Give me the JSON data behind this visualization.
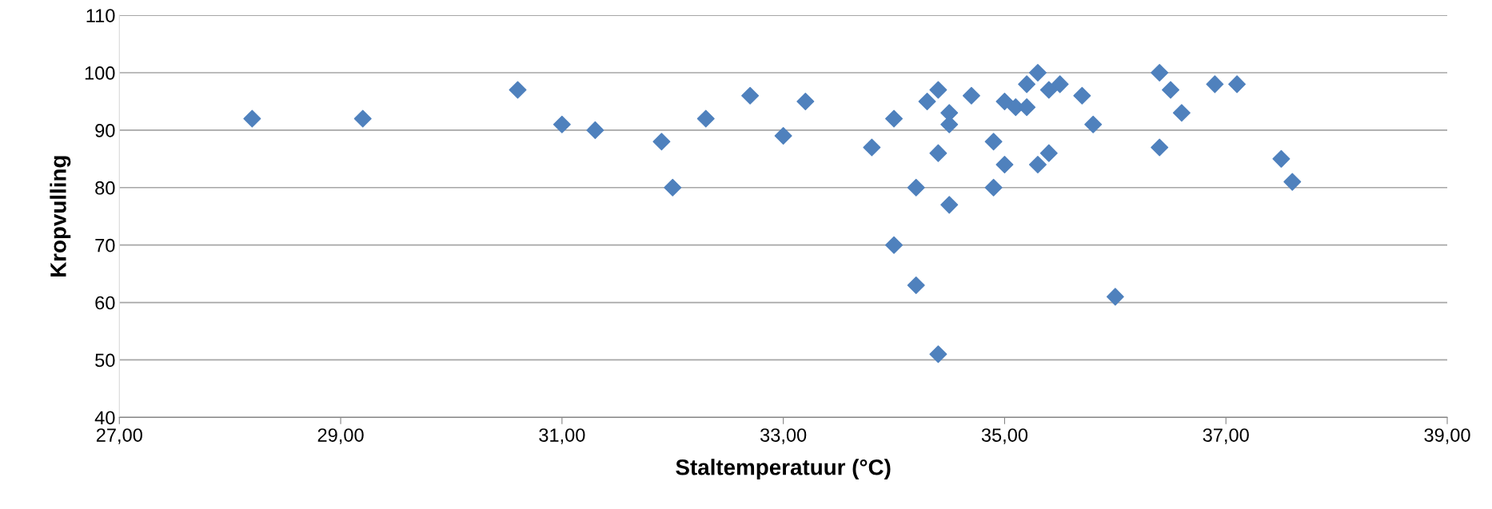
{
  "chart_data": {
    "type": "scatter",
    "xlabel": "Staltemperatuur (°C)",
    "ylabel": "Kropvulling",
    "x": [
      28.2,
      29.2,
      30.6,
      31.0,
      31.3,
      31.9,
      32.0,
      32.3,
      32.7,
      33.0,
      33.2,
      33.8,
      34.0,
      34.0,
      34.2,
      34.2,
      34.3,
      34.4,
      34.4,
      34.4,
      34.5,
      34.5,
      34.5,
      34.7,
      34.9,
      34.9,
      35.0,
      35.0,
      35.1,
      35.2,
      35.2,
      35.3,
      35.3,
      35.4,
      35.4,
      35.5,
      35.7,
      35.8,
      36.0,
      36.4,
      36.4,
      36.5,
      36.6,
      36.9,
      37.1,
      37.5,
      37.6
    ],
    "series": [
      {
        "color": "#4f81bd",
        "values": [
          92,
          92,
          97,
          91,
          90,
          88,
          80,
          92,
          96,
          89,
          95,
          87,
          92,
          70,
          80,
          63,
          95,
          97,
          86,
          51,
          93,
          91,
          77,
          96,
          88,
          80,
          95,
          84,
          94,
          98,
          94,
          100,
          84,
          97,
          86,
          98,
          96,
          91,
          61,
          100,
          87,
          97,
          93,
          98,
          98,
          85,
          81
        ]
      }
    ],
    "xlim": [
      27,
      39
    ],
    "xticks": [
      {
        "value": 27,
        "label": "27,00"
      },
      {
        "value": 29,
        "label": "29,00"
      },
      {
        "value": 31,
        "label": "31,00"
      },
      {
        "value": 33,
        "label": "33,00"
      },
      {
        "value": 35,
        "label": "35,00"
      },
      {
        "value": 37,
        "label": "37,00"
      },
      {
        "value": 39,
        "label": "39,00"
      }
    ],
    "ylim": [
      40,
      110
    ],
    "yticks": [
      40,
      50,
      60,
      70,
      80,
      90,
      100,
      110
    ],
    "grid": "y",
    "marker": "diamond"
  }
}
